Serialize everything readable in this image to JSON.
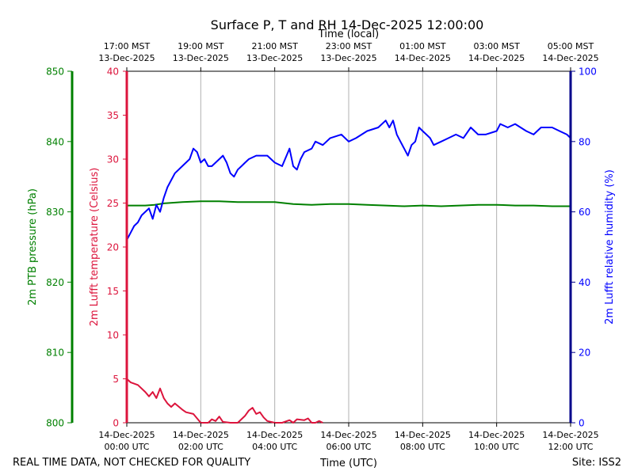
{
  "chart_data": {
    "type": "line",
    "title": "Surface P, T and RH 14-Dec-2025 12:00:00",
    "top_axis_label": "Time (local)",
    "bottom_axis_label": "Time (UTC)",
    "footer_left": "REAL TIME DATA, NOT CHECKED FOR QUALITY",
    "footer_right": "Site: ISS2",
    "x_range_hours": [
      0,
      12
    ],
    "x_ticks_utc": [
      {
        "hour": 0,
        "date": "14-Dec-2025",
        "time": "00:00 UTC"
      },
      {
        "hour": 2,
        "date": "14-Dec-2025",
        "time": "02:00 UTC"
      },
      {
        "hour": 4,
        "date": "14-Dec-2025",
        "time": "04:00 UTC"
      },
      {
        "hour": 6,
        "date": "14-Dec-2025",
        "time": "06:00 UTC"
      },
      {
        "hour": 8,
        "date": "14-Dec-2025",
        "time": "08:00 UTC"
      },
      {
        "hour": 10,
        "date": "14-Dec-2025",
        "time": "10:00 UTC"
      },
      {
        "hour": 12,
        "date": "14-Dec-2025",
        "time": "12:00 UTC"
      }
    ],
    "x_ticks_local": [
      {
        "hour": 0,
        "time": "17:00 MST",
        "date": "13-Dec-2025"
      },
      {
        "hour": 2,
        "time": "19:00 MST",
        "date": "13-Dec-2025"
      },
      {
        "hour": 4,
        "time": "21:00 MST",
        "date": "13-Dec-2025"
      },
      {
        "hour": 6,
        "time": "23:00 MST",
        "date": "13-Dec-2025"
      },
      {
        "hour": 8,
        "time": "01:00 MST",
        "date": "14-Dec-2025"
      },
      {
        "hour": 10,
        "time": "03:00 MST",
        "date": "14-Dec-2025"
      },
      {
        "hour": 12,
        "time": "05:00 MST",
        "date": "14-Dec-2025"
      }
    ],
    "axes": {
      "pressure": {
        "label": "2m PTB pressure (hPa)",
        "range": [
          800,
          850
        ],
        "ticks": [
          800,
          810,
          820,
          830,
          840,
          850
        ],
        "color": "#008000"
      },
      "temperature": {
        "label": "2m Lufft temperature (Celsius)",
        "range": [
          0,
          40
        ],
        "ticks": [
          0,
          5,
          10,
          15,
          20,
          25,
          30,
          35,
          40
        ],
        "color": "#dc143c"
      },
      "humidity": {
        "label": "2m Lufft relative humidity (%)",
        "range": [
          0,
          100
        ],
        "ticks": [
          0,
          20,
          40,
          60,
          80,
          100
        ],
        "color": "#0000ff"
      }
    },
    "series": [
      {
        "name": "Pressure (hPa)",
        "axis": "pressure",
        "color": "#008000",
        "x": [
          0,
          0.25,
          0.5,
          0.75,
          1,
          1.5,
          2,
          2.5,
          3,
          3.5,
          4,
          4.5,
          5,
          5.5,
          6,
          6.5,
          7,
          7.5,
          8,
          8.5,
          9,
          9.5,
          10,
          10.5,
          11,
          11.5,
          12
        ],
        "values": [
          830.9,
          830.9,
          830.9,
          831.0,
          831.2,
          831.4,
          831.5,
          831.5,
          831.4,
          831.4,
          831.4,
          831.1,
          831.0,
          831.1,
          831.1,
          831.0,
          830.9,
          830.8,
          830.9,
          830.8,
          830.9,
          831.0,
          831.0,
          830.9,
          830.9,
          830.8,
          830.8
        ]
      },
      {
        "name": "Temperature (C)",
        "axis": "temperature",
        "color": "#dc143c",
        "x": [
          0,
          0.1,
          0.3,
          0.5,
          0.6,
          0.7,
          0.8,
          0.9,
          1.0,
          1.1,
          1.2,
          1.3,
          1.5,
          1.6,
          1.8,
          1.9,
          2.0,
          2.1,
          2.2,
          2.3,
          2.4,
          2.5,
          2.6,
          2.8,
          3.0,
          3.2,
          3.3,
          3.4,
          3.5,
          3.6,
          3.7,
          3.8,
          4.0,
          4.2,
          4.4,
          4.5,
          4.6,
          4.8,
          4.9,
          5.0,
          5.1,
          5.2,
          5.3
        ],
        "values": [
          5.0,
          4.6,
          4.3,
          3.5,
          3.0,
          3.5,
          2.8,
          3.9,
          2.8,
          2.2,
          1.8,
          2.2,
          1.5,
          1.2,
          1.0,
          0.5,
          0.0,
          0.0,
          0.0,
          0.4,
          0.2,
          0.7,
          0.1,
          0.0,
          0.0,
          0.8,
          1.4,
          1.7,
          1.0,
          1.2,
          0.6,
          0.2,
          0.0,
          0.0,
          0.3,
          0.0,
          0.4,
          0.3,
          0.5,
          0.0,
          0.0,
          0.2,
          0.0
        ]
      },
      {
        "name": "Relative humidity (%)",
        "axis": "humidity",
        "color": "#0000ff",
        "x": [
          0,
          0.1,
          0.2,
          0.3,
          0.4,
          0.5,
          0.6,
          0.7,
          0.8,
          0.9,
          1.0,
          1.1,
          1.2,
          1.3,
          1.5,
          1.7,
          1.8,
          1.9,
          2.0,
          2.1,
          2.2,
          2.3,
          2.5,
          2.6,
          2.7,
          2.8,
          2.9,
          3.0,
          3.1,
          3.2,
          3.3,
          3.5,
          3.8,
          4.0,
          4.2,
          4.4,
          4.5,
          4.6,
          4.7,
          4.8,
          5.0,
          5.1,
          5.3,
          5.5,
          5.8,
          6.0,
          6.2,
          6.5,
          6.8,
          7.0,
          7.1,
          7.2,
          7.3,
          7.4,
          7.5,
          7.6,
          7.7,
          7.8,
          7.9,
          8.0,
          8.1,
          8.2,
          8.3,
          8.5,
          8.7,
          8.9,
          9.1,
          9.3,
          9.5,
          9.7,
          10.0,
          10.1,
          10.3,
          10.5,
          10.8,
          11.0,
          11.2,
          11.5,
          11.7,
          11.9,
          12.0
        ],
        "values": [
          52,
          54,
          56,
          57,
          59,
          60,
          61,
          58,
          62,
          60,
          64,
          67,
          69,
          71,
          73,
          75,
          78,
          77,
          74,
          75,
          73,
          73,
          75,
          76,
          74,
          71,
          70,
          72,
          73,
          74,
          75,
          76,
          76,
          74,
          73,
          78,
          73,
          72,
          75,
          77,
          78,
          80,
          79,
          81,
          82,
          80,
          81,
          83,
          84,
          86,
          84,
          86,
          82,
          80,
          78,
          76,
          79,
          80,
          84,
          83,
          82,
          81,
          79,
          80,
          81,
          82,
          81,
          84,
          82,
          82,
          83,
          85,
          84,
          85,
          83,
          82,
          84,
          84,
          83,
          82,
          81
        ]
      }
    ]
  }
}
